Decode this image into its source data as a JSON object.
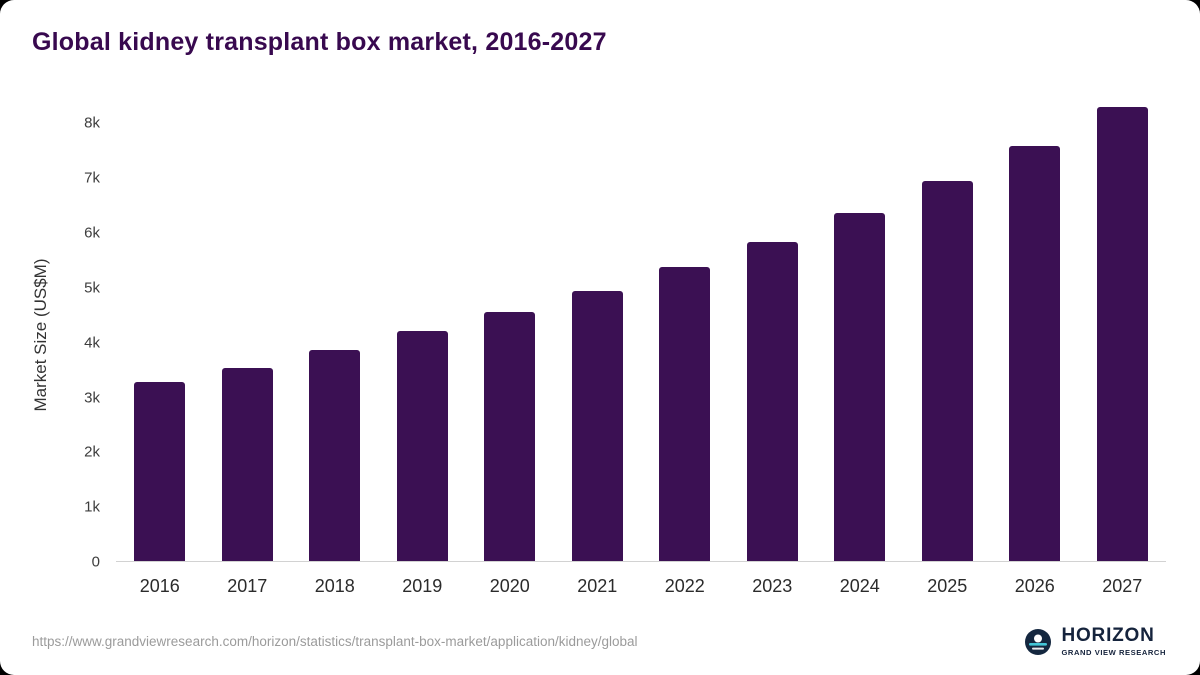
{
  "title": "Global kidney transplant box market, 2016-2027",
  "chart_data": {
    "type": "bar",
    "title": "Global kidney transplant box market, 2016-2027",
    "categories": [
      "2016",
      "2017",
      "2018",
      "2019",
      "2020",
      "2021",
      "2022",
      "2023",
      "2024",
      "2025",
      "2026",
      "2027"
    ],
    "values": [
      3270,
      3530,
      3860,
      4200,
      4550,
      4940,
      5380,
      5840,
      6360,
      6940,
      7580,
      8300
    ],
    "xlabel": "",
    "ylabel": "Market Size (US$M)",
    "ylim": [
      0,
      8300
    ],
    "yticks": [
      0,
      1000,
      2000,
      3000,
      4000,
      5000,
      6000,
      7000,
      8000
    ],
    "ytick_labels": [
      "0",
      "1k",
      "2k",
      "3k",
      "4k",
      "5k",
      "6k",
      "7k",
      "8k"
    ],
    "bar_color": "#3b1053",
    "grid": false,
    "legend_position": "none"
  },
  "footer": {
    "source_url": "https://www.grandviewresearch.com/horizon/statistics/transplant-box-market/application/kidney/global",
    "brand": {
      "name": "HORIZON",
      "subtitle": "GRAND VIEW RESEARCH",
      "logo_icon": "horizon-logo-icon"
    }
  },
  "colors": {
    "title": "#38094f",
    "bar": "#3b1053",
    "axis_text": "#3d3d3d",
    "baseline": "#d2d2d2",
    "source_text": "#9b9b9b",
    "brand_navy": "#15233c",
    "brand_teal": "#43c6d7"
  }
}
